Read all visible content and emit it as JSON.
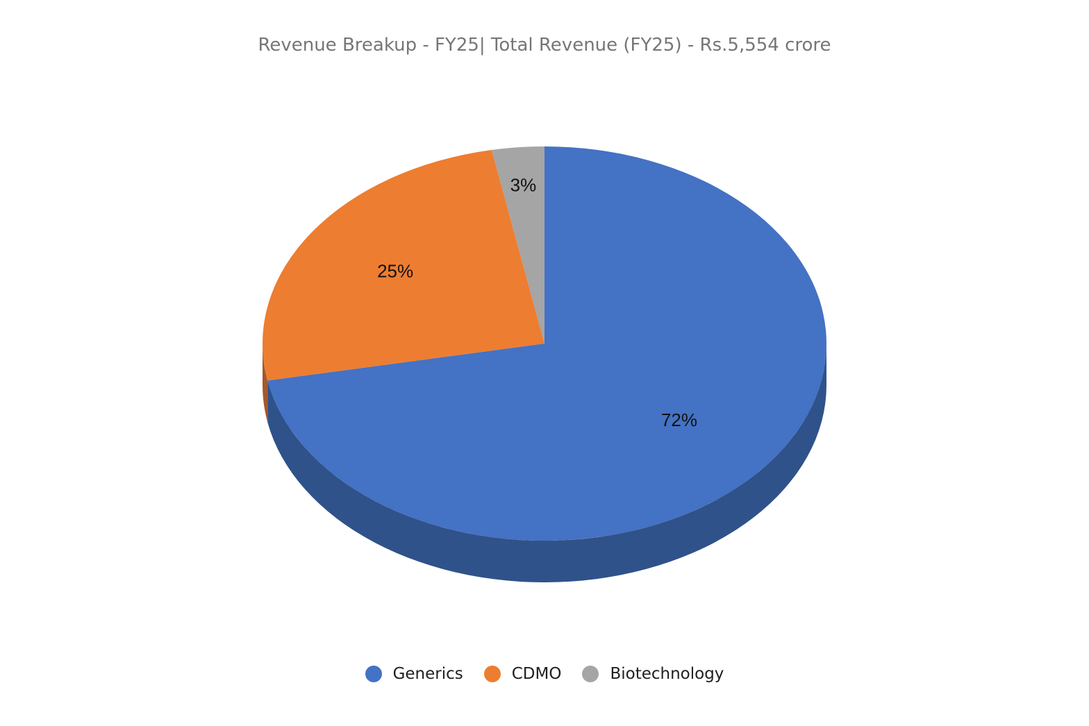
{
  "chart_data": {
    "type": "pie",
    "title": "Revenue Breakup - FY25| Total Revenue (FY25) - Rs.5,554 crore",
    "categories": [
      "Generics",
      "CDMO",
      "Biotechnology"
    ],
    "values": [
      72,
      25,
      3
    ],
    "labels": [
      "72%",
      "25%",
      "3%"
    ],
    "colors": [
      "#4472C4",
      "#ED7D31",
      "#A5A5A5"
    ],
    "side_colors": [
      "#2F528A",
      "#A4582B",
      "#7C7C7C"
    ],
    "legend_position": "bottom",
    "style": "3d"
  }
}
